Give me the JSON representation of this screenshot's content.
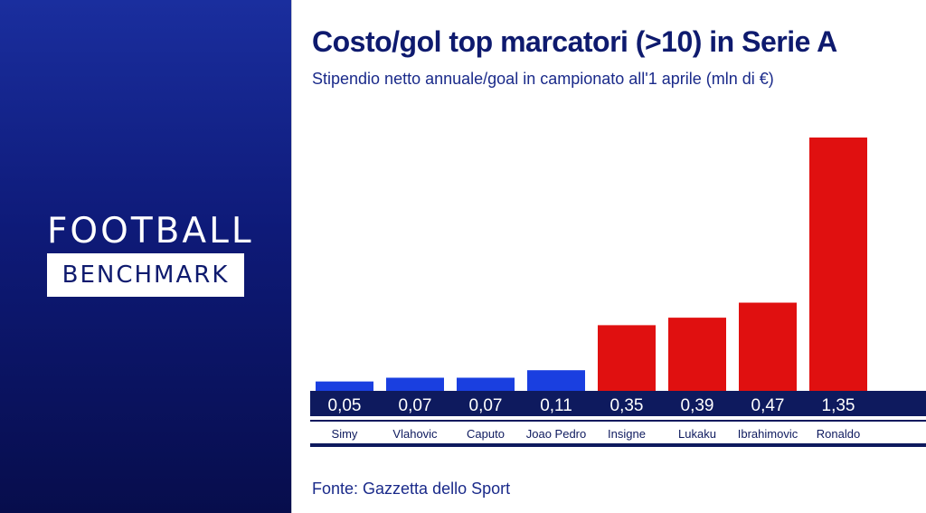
{
  "brand": {
    "line1": "FOOTBALL",
    "line2": "BENCHMARK"
  },
  "source": "Fonte: Gazzetta dello Sport",
  "chart_data": {
    "type": "bar",
    "title": "Costo/gol top marcatori (>10) in Serie A",
    "subtitle": "Stipendio netto annuale/goal in campionato all'1 aprile (mln di €)",
    "categories": [
      "Simy",
      "Vlahovic",
      "Caputo",
      "Joao Pedro",
      "Insigne",
      "Lukaku",
      "Ibrahimovic",
      "Ronaldo"
    ],
    "values": [
      0.05,
      0.07,
      0.07,
      0.11,
      0.35,
      0.39,
      0.47,
      1.35
    ],
    "value_labels": [
      "0,05",
      "0,07",
      "0,07",
      "0,11",
      "0,35",
      "0,39",
      "0,47",
      "1,35"
    ],
    "bar_colors": [
      "#1a3fe0",
      "#1a3fe0",
      "#1a3fe0",
      "#1a3fe0",
      "#e01010",
      "#e01010",
      "#e01010",
      "#e01010"
    ],
    "ylim": [
      0,
      1.35
    ],
    "grid": false,
    "legend": "none",
    "colors": {
      "value_strip": "#0e1a5e",
      "label_strip": "#ffffff",
      "label_text": "#0e1a5e"
    }
  }
}
